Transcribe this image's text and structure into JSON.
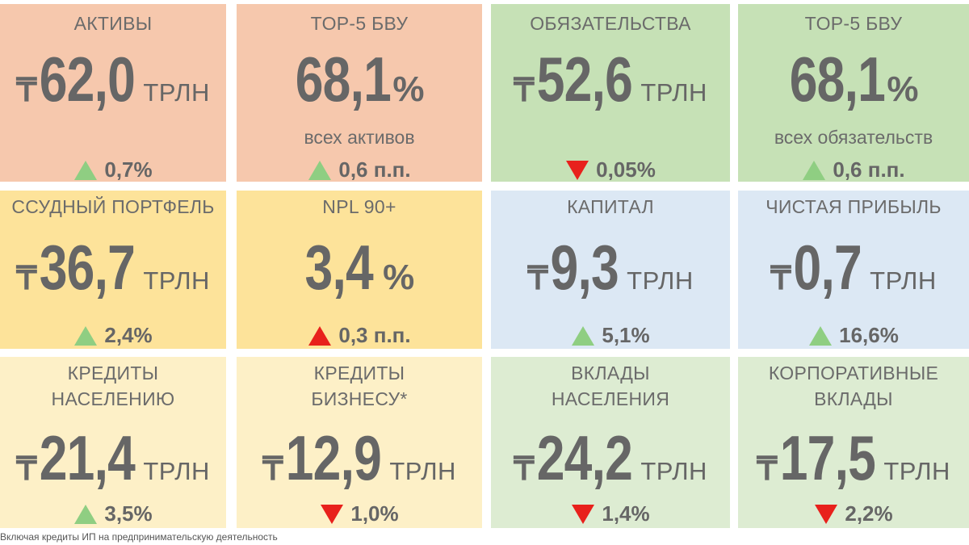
{
  "colors": {
    "salmon": "#f6c8ad",
    "green": "#c6e1b6",
    "yellow": "#fde39a",
    "blue": "#dce8f4",
    "pale_yellow": "#fdf0c7",
    "pale_green": "#ddecd2",
    "up": "#8fce82",
    "down_up_red": "#e8211c"
  },
  "tiles": [
    {
      "label": "АКТИВЫ",
      "currency": "₸",
      "value": "62,0",
      "unit": "ТРЛН",
      "change": "0,7%",
      "trend": "up-green"
    },
    {
      "label": "TOP-5 БВУ",
      "value": "68,1",
      "unit": "%",
      "sub": "всех активов",
      "change": "0,6 п.п.",
      "trend": "up-green"
    },
    {
      "label": "ОБЯЗАТЕЛЬСТВА",
      "currency": "₸",
      "value": "52,6",
      "unit": "ТРЛН",
      "change": "0,05%",
      "trend": "down-red"
    },
    {
      "label": "TOP-5 БВУ",
      "value": "68,1",
      "unit": "%",
      "sub": "всех обязательств",
      "change": "0,6 п.п.",
      "trend": "up-green"
    },
    {
      "label": "ССУДНЫЙ ПОРТФЕЛЬ",
      "currency": "₸",
      "value": "36,7",
      "unit": "ТРЛН",
      "change": "2,4%",
      "trend": "up-green"
    },
    {
      "label": "NPL 90+",
      "value": "3,4",
      "unit": "%",
      "change": "0,3 п.п.",
      "trend": "up-red"
    },
    {
      "label": "КАПИТАЛ",
      "currency": "₸",
      "value": "9,3",
      "unit": "ТРЛН",
      "change": "5,1%",
      "trend": "up-green"
    },
    {
      "label": "ЧИСТАЯ ПРИБЫЛЬ",
      "currency": "₸",
      "value": "0,7",
      "unit": "ТРЛН",
      "change": "16,6%",
      "trend": "up-green"
    },
    {
      "label_line1": "КРЕДИТЫ",
      "label_line2": "НАСЕЛЕНИЮ",
      "currency": "₸",
      "value": "21,4",
      "unit": "ТРЛН",
      "change": "3,5%",
      "trend": "up-green"
    },
    {
      "label_line1": "КРЕДИТЫ",
      "label_line2": "БИЗНЕСУ*",
      "currency": "₸",
      "value": "12,9",
      "unit": "ТРЛН",
      "change": "1,0%",
      "trend": "down-red"
    },
    {
      "label_line1": "ВКЛАДЫ",
      "label_line2": "НАСЕЛЕНИЯ",
      "currency": "₸",
      "value": "24,2",
      "unit": "ТРЛН",
      "change": "1,4%",
      "trend": "down-red"
    },
    {
      "label_line1": "КОРПОРАТИВНЫЕ",
      "label_line2": "ВКЛАДЫ",
      "currency": "₸",
      "value": "17,5",
      "unit": "ТРЛН",
      "change": "2,2%",
      "trend": "down-red"
    }
  ],
  "footnote": "Включая кредиты ИП на предпринимательскую деятельность"
}
